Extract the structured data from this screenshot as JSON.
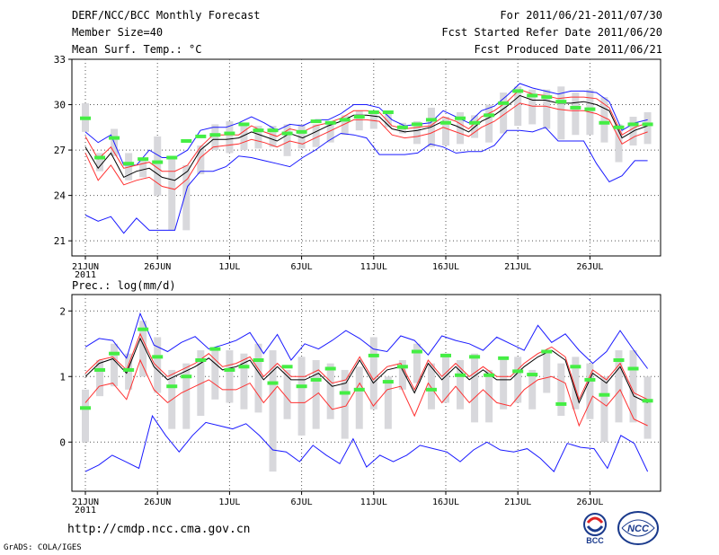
{
  "header": {
    "title": "DERF/NCC/BCC Monthly Forecast",
    "member_size": "Member Size=40",
    "variable": "Mean Surf. Temp.: °C",
    "period": "For 2011/06/21-2011/07/30",
    "fcst_started": "Fcst Started Refer Date 2011/06/20",
    "fcst_produced": "Fcst Produced Date 2011/06/21"
  },
  "footer": {
    "url": "http://cmdp.ncc.cma.gov.cn",
    "credit": "GrADS: COLA/IGES",
    "logo_left": "BCC",
    "logo_right": "NCC"
  },
  "colors": {
    "max_line": "#1a1aff",
    "min_line": "#1a1aff",
    "upper_red": "#ff3030",
    "lower_red": "#ff3030",
    "mean_line": "#000000",
    "bars": "#d8d8dc",
    "markers": "#44ee44"
  },
  "chart_data": [
    {
      "type": "line",
      "title": "Mean Surf. Temp.: °C",
      "x_ticks": [
        "21JUN",
        "26JUN",
        "1JUL",
        "6JUL",
        "11JUL",
        "16JUL",
        "21JUL",
        "26JUL"
      ],
      "x_tick_year": "2011",
      "ylim": [
        20,
        33
      ],
      "yticks": [
        "21",
        "24",
        "27",
        "30",
        "33"
      ],
      "days": 40,
      "series": [
        {
          "name": "max",
          "values": [
            28.2,
            27.5,
            28.0,
            26.0,
            26.0,
            27.0,
            26.5,
            26.5,
            27.0,
            28.3,
            28.5,
            28.5,
            28.8,
            29.2,
            28.8,
            28.3,
            28.7,
            28.6,
            29.0,
            29.0,
            29.4,
            30.0,
            30.0,
            29.8,
            29.0,
            28.6,
            28.7,
            28.8,
            29.6,
            29.2,
            28.8,
            29.6,
            29.9,
            30.6,
            31.4,
            31.1,
            30.9,
            30.7,
            30.9,
            30.9,
            30.8,
            30.2,
            28.3,
            28.8,
            29.0
          ]
        },
        {
          "name": "upper",
          "values": [
            27.9,
            26.4,
            27.2,
            25.8,
            26.0,
            26.2,
            25.6,
            25.6,
            26.0,
            27.2,
            28.0,
            28.0,
            28.0,
            28.6,
            28.2,
            27.9,
            28.4,
            28.2,
            28.6,
            28.8,
            29.1,
            29.6,
            29.6,
            29.5,
            28.6,
            28.4,
            28.5,
            28.6,
            29.2,
            28.9,
            28.4,
            29.2,
            29.6,
            30.2,
            31.0,
            30.7,
            30.6,
            30.4,
            30.5,
            30.5,
            30.4,
            29.8,
            28.0,
            28.5,
            28.8
          ]
        },
        {
          "name": "mean",
          "values": [
            27.2,
            25.8,
            26.8,
            25.2,
            25.6,
            25.8,
            25.2,
            25.0,
            25.6,
            27.0,
            27.7,
            27.7,
            27.8,
            28.2,
            27.9,
            27.6,
            28.1,
            27.8,
            28.2,
            28.6,
            28.9,
            29.3,
            29.3,
            29.2,
            28.4,
            28.2,
            28.3,
            28.5,
            28.9,
            28.6,
            28.2,
            28.9,
            29.3,
            29.9,
            30.6,
            30.3,
            30.3,
            30.1,
            30.1,
            30.2,
            30.0,
            29.6,
            27.8,
            28.3,
            28.6
          ]
        },
        {
          "name": "lower",
          "values": [
            26.8,
            25.0,
            26.0,
            24.7,
            25.0,
            25.2,
            24.6,
            24.4,
            25.1,
            26.5,
            27.2,
            27.3,
            27.4,
            27.7,
            27.5,
            27.2,
            27.6,
            27.4,
            27.8,
            28.2,
            28.6,
            29.0,
            29.0,
            28.9,
            28.0,
            27.8,
            27.9,
            28.1,
            28.5,
            28.2,
            27.9,
            28.5,
            28.9,
            29.5,
            30.1,
            29.9,
            29.9,
            29.7,
            29.6,
            29.6,
            29.4,
            29.0,
            27.4,
            27.9,
            28.2
          ]
        },
        {
          "name": "min",
          "values": [
            22.7,
            22.3,
            22.6,
            21.5,
            22.5,
            21.7,
            21.7,
            21.7,
            24.6,
            25.6,
            25.6,
            25.9,
            26.6,
            26.5,
            26.3,
            26.1,
            25.9,
            26.5,
            27.0,
            27.6,
            28.1,
            28.0,
            27.8,
            26.7,
            26.7,
            26.7,
            26.8,
            27.4,
            27.2,
            26.8,
            26.9,
            26.9,
            27.3,
            28.3,
            28.3,
            28.2,
            28.5,
            27.6,
            27.6,
            27.6,
            26.1,
            24.9,
            25.3,
            26.3,
            26.3
          ]
        }
      ],
      "obs_markers": [
        29.1,
        26.5,
        27.8,
        26.1,
        26.4,
        26.2,
        26.5,
        27.6,
        27.9,
        28.0,
        28.1,
        28.7,
        28.3,
        28.3,
        28.1,
        28.2,
        28.9,
        28.8,
        29.0,
        29.2,
        29.5,
        29.5,
        28.5,
        28.7,
        29.0,
        28.8,
        29.1,
        28.8,
        29.3,
        30.1,
        30.9,
        30.6,
        30.5,
        30.2,
        29.8,
        29.7,
        28.8,
        28.5,
        28.7,
        28.7
      ],
      "bars": [
        [
          28.2,
          30.1
        ],
        [
          25.6,
          26.8
        ],
        [
          26.6,
          28.4
        ],
        [
          25.0,
          26.8
        ],
        [
          25.2,
          26.5
        ],
        [
          24.0,
          27.9
        ],
        [
          21.7,
          26.5
        ],
        [
          21.7,
          26.0
        ],
        [
          25.4,
          27.3
        ],
        [
          27.0,
          28.7
        ],
        [
          26.8,
          28.9
        ],
        [
          27.0,
          28.8
        ],
        [
          27.1,
          28.6
        ],
        [
          27.2,
          28.6
        ],
        [
          26.6,
          28.7
        ],
        [
          27.1,
          28.7
        ],
        [
          27.2,
          28.7
        ],
        [
          27.5,
          28.9
        ],
        [
          28.0,
          29.3
        ],
        [
          28.3,
          29.6
        ],
        [
          28.4,
          29.5
        ],
        [
          28.5,
          29.6
        ],
        [
          28.1,
          28.8
        ],
        [
          27.4,
          28.9
        ],
        [
          27.2,
          29.8
        ],
        [
          27.3,
          29.2
        ],
        [
          27.4,
          29.5
        ],
        [
          27.8,
          29.3
        ],
        [
          27.5,
          30.0
        ],
        [
          28.1,
          30.8
        ],
        [
          28.6,
          31.2
        ],
        [
          28.7,
          31.0
        ],
        [
          28.4,
          31.0
        ],
        [
          27.7,
          31.2
        ],
        [
          28.0,
          30.8
        ],
        [
          28.0,
          31.0
        ],
        [
          27.5,
          30.5
        ],
        [
          26.2,
          28.7
        ],
        [
          27.3,
          29.2
        ],
        [
          27.4,
          29.5
        ]
      ]
    },
    {
      "type": "line",
      "title": "Prec.: log(mm/d)",
      "x_ticks": [
        "21JUN",
        "26JUN",
        "1JUL",
        "6JUL",
        "11JUL",
        "16JUL",
        "21JUL",
        "26JUL"
      ],
      "x_tick_year": "2011",
      "ylim": [
        -0.75,
        2.25
      ],
      "yticks": [
        "0",
        "1",
        "2"
      ],
      "days": 40,
      "series": [
        {
          "name": "max",
          "values": [
            1.45,
            1.58,
            1.55,
            1.28,
            1.96,
            1.48,
            1.38,
            1.52,
            1.61,
            1.42,
            1.48,
            1.55,
            1.67,
            1.35,
            1.64,
            1.25,
            1.5,
            1.42,
            1.55,
            1.7,
            1.58,
            1.42,
            1.38,
            1.62,
            1.55,
            1.33,
            1.62,
            1.55,
            1.5,
            1.4,
            1.6,
            1.5,
            1.4,
            1.78,
            1.52,
            1.65,
            1.4,
            1.2,
            1.38,
            1.7,
            1.4,
            1.12
          ]
        },
        {
          "name": "upper",
          "values": [
            1.05,
            1.25,
            1.3,
            1.1,
            1.65,
            1.2,
            1.0,
            1.1,
            1.2,
            1.35,
            1.15,
            1.2,
            1.3,
            1.0,
            1.2,
            1.0,
            1.0,
            1.1,
            0.9,
            0.95,
            1.3,
            0.95,
            1.15,
            1.2,
            0.8,
            1.25,
            1.0,
            1.2,
            1.0,
            1.15,
            1.0,
            1.0,
            1.2,
            1.35,
            1.45,
            1.3,
            0.65,
            1.1,
            0.95,
            1.2,
            0.75,
            0.65
          ]
        },
        {
          "name": "mean",
          "values": [
            1.0,
            1.2,
            1.27,
            1.05,
            1.58,
            1.15,
            0.95,
            1.05,
            1.15,
            1.28,
            1.1,
            1.15,
            1.25,
            0.95,
            1.15,
            0.95,
            0.95,
            1.05,
            0.85,
            0.9,
            1.25,
            0.9,
            1.1,
            1.15,
            0.75,
            1.2,
            0.95,
            1.15,
            0.95,
            1.1,
            0.95,
            0.95,
            1.15,
            1.3,
            1.4,
            1.25,
            0.6,
            1.05,
            0.9,
            1.15,
            0.7,
            0.6
          ]
        },
        {
          "name": "lower",
          "values": [
            0.6,
            0.85,
            0.9,
            0.65,
            1.25,
            0.8,
            0.6,
            0.75,
            0.85,
            0.95,
            0.8,
            0.8,
            0.9,
            0.6,
            0.85,
            0.6,
            0.6,
            0.75,
            0.5,
            0.55,
            0.9,
            0.55,
            0.8,
            0.85,
            0.4,
            0.9,
            0.6,
            0.85,
            0.6,
            0.8,
            0.6,
            0.55,
            0.8,
            0.95,
            1.0,
            0.9,
            0.25,
            0.7,
            0.55,
            0.8,
            0.35,
            0.25
          ]
        },
        {
          "name": "min",
          "values": [
            -0.45,
            -0.35,
            -0.2,
            -0.3,
            -0.4,
            0.4,
            0.1,
            -0.15,
            0.1,
            0.3,
            0.25,
            0.2,
            0.28,
            0.1,
            -0.12,
            -0.15,
            -0.3,
            -0.05,
            -0.2,
            -0.33,
            0.05,
            -0.38,
            -0.2,
            -0.3,
            -0.2,
            -0.05,
            -0.1,
            -0.15,
            -0.3,
            -0.12,
            0.0,
            -0.12,
            -0.15,
            -0.1,
            -0.25,
            -0.45,
            -0.02,
            -0.08,
            -0.1,
            -0.4,
            0.1,
            -0.02,
            -0.45
          ]
        }
      ],
      "obs_markers": [
        0.52,
        1.1,
        1.35,
        1.1,
        1.72,
        1.3,
        0.85,
        1.0,
        1.25,
        1.42,
        1.1,
        1.15,
        1.25,
        0.9,
        1.15,
        0.85,
        0.95,
        1.12,
        0.75,
        0.8,
        1.32,
        0.92,
        1.15,
        1.38,
        0.8,
        1.32,
        1.02,
        1.3,
        1.02,
        1.28,
        1.08,
        1.03,
        1.38,
        0.58,
        1.15,
        0.95,
        0.72,
        1.25,
        1.12,
        0.63
      ],
      "bars": [
        [
          0.0,
          0.8
        ],
        [
          0.7,
          1.25
        ],
        [
          0.85,
          1.5
        ],
        [
          0.8,
          1.35
        ],
        [
          1.0,
          1.85
        ],
        [
          0.75,
          1.6
        ],
        [
          0.2,
          1.1
        ],
        [
          0.2,
          1.2
        ],
        [
          0.4,
          1.4
        ],
        [
          0.65,
          1.45
        ],
        [
          0.6,
          1.4
        ],
        [
          0.5,
          1.35
        ],
        [
          0.45,
          1.5
        ],
        [
          -0.45,
          1.4
        ],
        [
          0.35,
          1.1
        ],
        [
          0.1,
          1.3
        ],
        [
          0.2,
          1.25
        ],
        [
          0.35,
          1.2
        ],
        [
          0.05,
          1.1
        ],
        [
          0.2,
          1.15
        ],
        [
          0.5,
          1.6
        ],
        [
          0.2,
          1.0
        ],
        [
          0.8,
          1.25
        ],
        [
          0.9,
          1.5
        ],
        [
          0.5,
          1.2
        ],
        [
          0.6,
          1.35
        ],
        [
          0.5,
          1.25
        ],
        [
          0.3,
          1.35
        ],
        [
          0.3,
          1.1
        ],
        [
          0.5,
          1.3
        ],
        [
          0.6,
          1.3
        ],
        [
          0.5,
          1.1
        ],
        [
          0.75,
          1.35
        ],
        [
          0.4,
          1.2
        ],
        [
          0.5,
          1.3
        ],
        [
          0.35,
          1.2
        ],
        [
          0.0,
          1.0
        ],
        [
          0.3,
          1.4
        ],
        [
          0.3,
          1.4
        ],
        [
          0.05,
          1.0
        ]
      ]
    }
  ]
}
